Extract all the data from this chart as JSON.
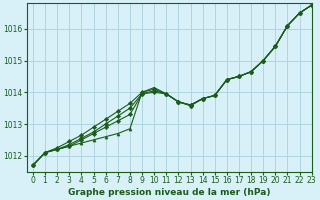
{
  "title": "Graphe pression niveau de la mer (hPa)",
  "background_color": "#d8f0f8",
  "grid_color": "#b0d4e0",
  "line_color": "#1a5c1a",
  "marker_color": "#1a5c1a",
  "xlim": [
    -0.5,
    23
  ],
  "ylim": [
    1011.5,
    1016.8
  ],
  "yticks": [
    1012,
    1013,
    1014,
    1015,
    1016
  ],
  "xticks": [
    0,
    1,
    2,
    3,
    4,
    5,
    6,
    7,
    8,
    9,
    10,
    11,
    12,
    13,
    14,
    15,
    16,
    17,
    18,
    19,
    20,
    21,
    22,
    23
  ],
  "series": [
    [
      1011.7,
      1012.1,
      1012.2,
      1012.3,
      1012.5,
      1012.7,
      1012.9,
      1013.1,
      1013.3,
      1013.95,
      1014.0,
      1013.95,
      1013.7,
      1013.58,
      1013.8,
      1013.9,
      1014.4,
      1014.5,
      1014.65,
      1015.0,
      1015.45,
      1016.1,
      1016.5,
      1016.75
    ],
    [
      1011.7,
      1012.1,
      1012.2,
      1012.35,
      1012.55,
      1012.75,
      1013.0,
      1013.25,
      1013.5,
      1013.95,
      1014.05,
      1013.95,
      1013.7,
      1013.6,
      1013.8,
      1013.9,
      1014.4,
      1014.5,
      1014.65,
      1015.0,
      1015.45,
      1016.1,
      1016.5,
      1016.75
    ],
    [
      1011.7,
      1012.1,
      1012.25,
      1012.45,
      1012.65,
      1012.9,
      1013.15,
      1013.4,
      1013.65,
      1014.0,
      1014.1,
      1013.95,
      1013.7,
      1013.6,
      1013.8,
      1013.9,
      1014.4,
      1014.5,
      1014.65,
      1015.0,
      1015.45,
      1016.1,
      1016.5,
      1016.75
    ],
    [
      1011.7,
      1012.1,
      1012.2,
      1012.3,
      1012.4,
      1012.5,
      1012.6,
      1012.7,
      1012.85,
      1014.0,
      1014.15,
      1013.95,
      1013.7,
      1013.58,
      1013.8,
      1013.9,
      1014.4,
      1014.5,
      1014.65,
      1015.0,
      1015.45,
      1016.1,
      1016.5,
      1016.75
    ]
  ],
  "title_fontsize": 6.5,
  "tick_fontsize": 5.5
}
